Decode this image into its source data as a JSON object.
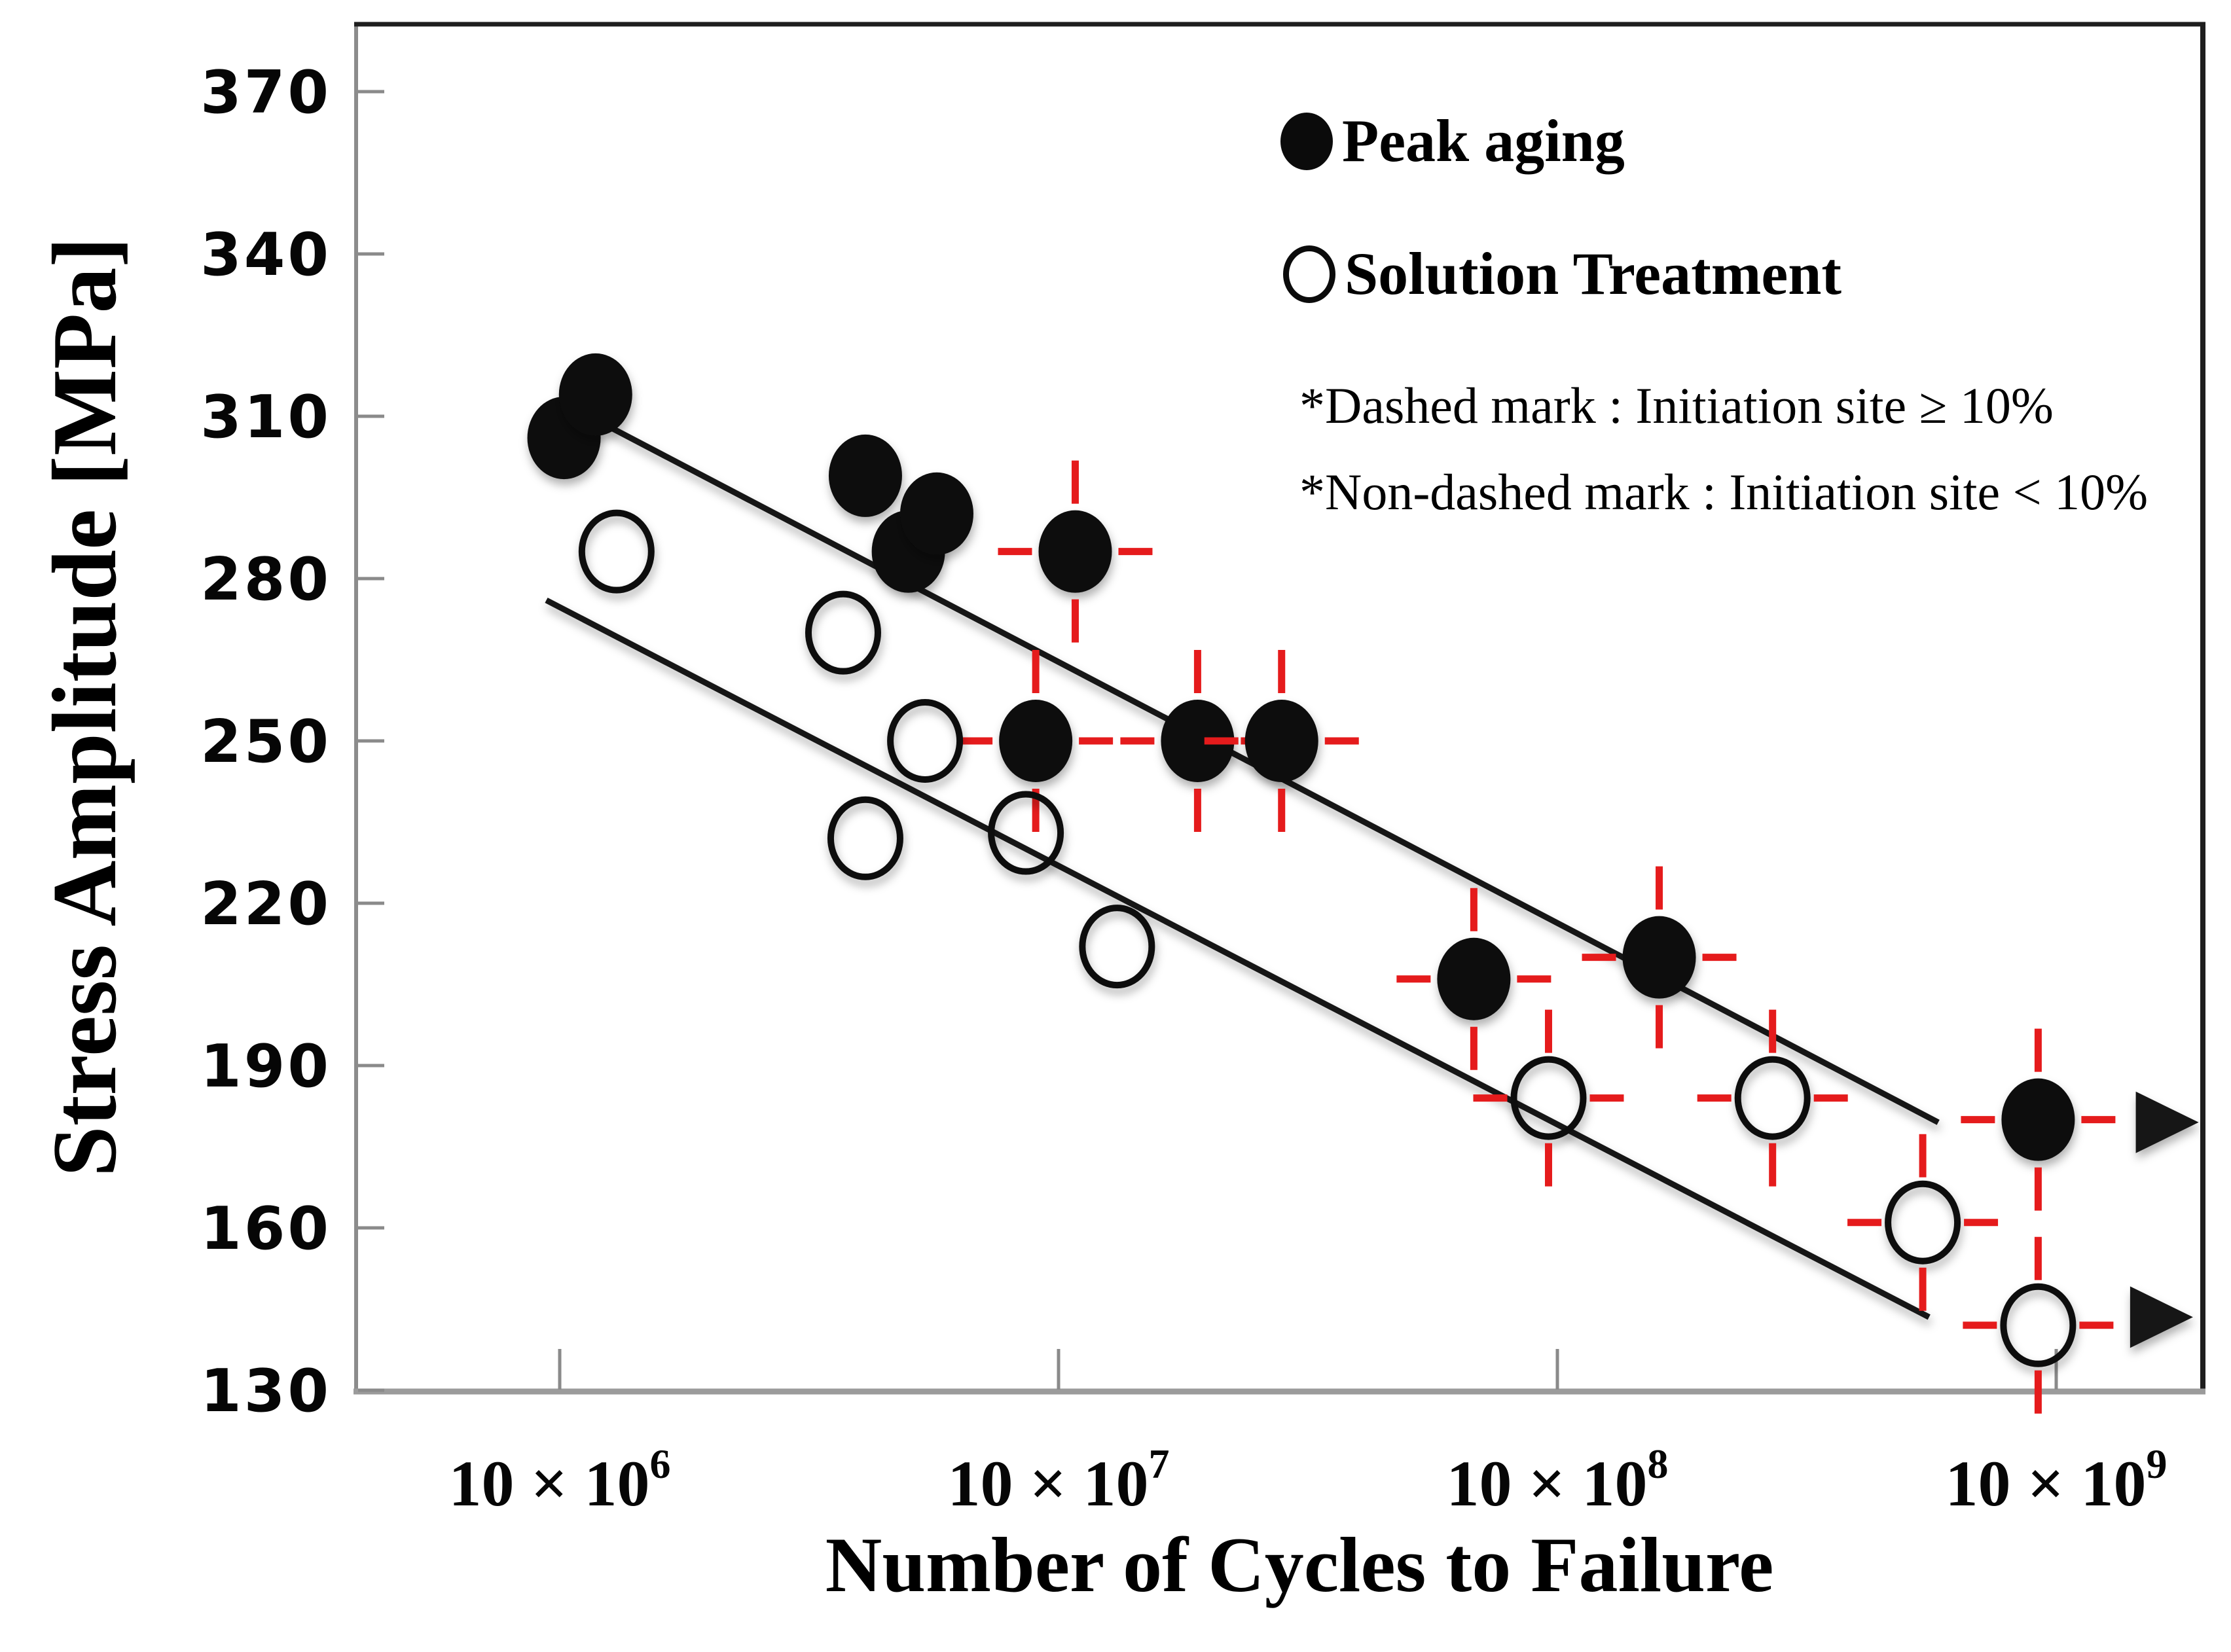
{
  "legend": {
    "items": [
      {
        "label": "Peak aging",
        "marker": "filled-circle"
      },
      {
        "label": "Solution Treatment",
        "marker": "open-circle"
      }
    ],
    "notes": [
      "*Dashed mark : Initiation site ≥ 10%",
      "*Non-dashed mark : Initiation site < 10%"
    ]
  },
  "chart_data": {
    "type": "scatter",
    "title": "",
    "xlabel": "Number of Cycles to Failure",
    "ylabel": "Stress Amplitude [MPa]",
    "x_scale": "log",
    "ylim": [
      130,
      370
    ],
    "grid": false,
    "legend_position": "top-right",
    "y_ticks": [
      370,
      340,
      310,
      280,
      250,
      220,
      190,
      160,
      130
    ],
    "x_ticks": [
      {
        "label": "10 × 10⁶",
        "base": "10 × 10",
        "exp": "6",
        "value": 10000000.0
      },
      {
        "label": "10 × 10⁷",
        "base": "10 × 10",
        "exp": "7",
        "value": 100000000.0
      },
      {
        "label": "10 × 10⁸",
        "base": "10 × 10",
        "exp": "8",
        "value": 1000000000.0
      },
      {
        "label": "10 × 10⁹",
        "base": "10 × 10",
        "exp": "9",
        "value": 10000000000.0
      }
    ],
    "colors": {
      "marker": "#0b0b0b",
      "line": "#121212",
      "dashed_mark": "#e51b1c",
      "axis": "#8a8a8a"
    },
    "series": [
      {
        "name": "Peak aging",
        "marker": "filled-circle",
        "points": [
          {
            "cycles": 10200000.0,
            "stress": 306,
            "dashed": false,
            "runout": false
          },
          {
            "cycles": 11800000.0,
            "stress": 314,
            "dashed": false,
            "runout": false
          },
          {
            "cycles": 41000000.0,
            "stress": 299,
            "dashed": false,
            "runout": false
          },
          {
            "cycles": 50000000.0,
            "stress": 285,
            "dashed": false,
            "runout": false
          },
          {
            "cycles": 57000000.0,
            "stress": 292,
            "dashed": false,
            "runout": false
          },
          {
            "cycles": 108000000.0,
            "stress": 285,
            "dashed": true,
            "runout": false
          },
          {
            "cycles": 90000000.0,
            "stress": 250,
            "dashed": true,
            "runout": false
          },
          {
            "cycles": 190000000.0,
            "stress": 250,
            "dashed": true,
            "runout": false
          },
          {
            "cycles": 280000000.0,
            "stress": 250,
            "dashed": true,
            "runout": false
          },
          {
            "cycles": 680000000.0,
            "stress": 206,
            "dashed": true,
            "runout": false
          },
          {
            "cycles": 1600000000.0,
            "stress": 210,
            "dashed": true,
            "runout": false
          },
          {
            "cycles": 9200000000.0,
            "stress": 180,
            "dashed": true,
            "runout": true
          }
        ]
      },
      {
        "name": "Solution Treatment",
        "marker": "open-circle",
        "points": [
          {
            "cycles": 13000000.0,
            "stress": 285,
            "dashed": false,
            "runout": false
          },
          {
            "cycles": 37000000.0,
            "stress": 270,
            "dashed": false,
            "runout": false
          },
          {
            "cycles": 54000000.0,
            "stress": 250,
            "dashed": false,
            "runout": false
          },
          {
            "cycles": 41000000.0,
            "stress": 232,
            "dashed": false,
            "runout": false
          },
          {
            "cycles": 86000000.0,
            "stress": 233,
            "dashed": false,
            "runout": false
          },
          {
            "cycles": 131000000.0,
            "stress": 212,
            "dashed": false,
            "runout": false
          },
          {
            "cycles": 960000000.0,
            "stress": 184,
            "dashed": true,
            "runout": false
          },
          {
            "cycles": 2700000000.0,
            "stress": 184,
            "dashed": true,
            "runout": false
          },
          {
            "cycles": 5400000000.0,
            "stress": 161,
            "dashed": true,
            "runout": false
          },
          {
            "cycles": 9200000000.0,
            "stress": 142,
            "dashed": true,
            "runout": true
          }
        ]
      }
    ],
    "trend_lines": [
      {
        "series": "Peak aging",
        "points": [
          {
            "cycles": 12600000.0,
            "stress": 308
          },
          {
            "cycles": 5800000000.0,
            "stress": 179.5
          },
          {
            "cycles": 19300000000.0,
            "stress": 179.5
          }
        ],
        "arrow": true
      },
      {
        "series": "Solution Treatment",
        "points": [
          {
            "cycles": 9400000.0,
            "stress": 276
          },
          {
            "cycles": 5560000000.0,
            "stress": 143.5
          },
          {
            "cycles": 18800000000.0,
            "stress": 143.5
          }
        ],
        "arrow": true
      }
    ]
  }
}
